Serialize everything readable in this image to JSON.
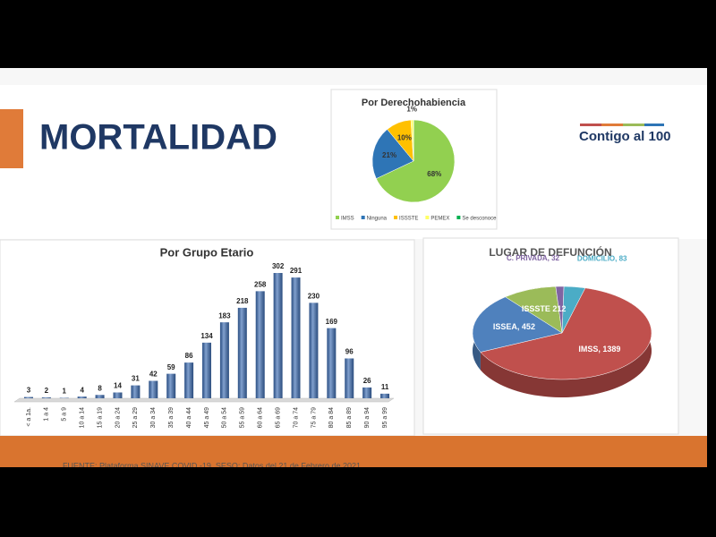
{
  "page": {
    "title": "MORTALIDAD",
    "logo": "Contigo al 100",
    "source": "FUENTE: Plataforma SINAVE COVID -19. SESO; Datos del 21 de Febrero de 2021"
  },
  "chart_data": [
    {
      "type": "pie",
      "title": "Por Derechohabiencia",
      "categories": [
        "IMSS",
        "Ninguna",
        "ISSSTE",
        "PEMEX",
        "Se desconoce"
      ],
      "values": [
        68,
        21,
        10,
        1,
        0
      ],
      "value_labels": [
        "68%",
        "21%",
        "10%",
        "1%",
        null
      ],
      "colors": [
        "#92d050",
        "#2e75b6",
        "#ffc000",
        "#ffff66",
        "#00b050"
      ],
      "legend": "bottom"
    },
    {
      "type": "bar",
      "title": "Por Grupo Etario",
      "categories": [
        "< a 1a.",
        "1 a 4",
        "5 a 9",
        "10 a 14",
        "15 a 19",
        "20 a 24",
        "25 a 29",
        "30 a 34",
        "35 a 39",
        "40 a 44",
        "45 a 49",
        "50 a 54",
        "55 a 59",
        "60 a 64",
        "65 a 69",
        "70 a 74",
        "75 a 79",
        "80 a 84",
        "85 a 89",
        "90 a 94",
        "95 a 99"
      ],
      "values": [
        3,
        2,
        1,
        4,
        8,
        14,
        31,
        42,
        59,
        86,
        134,
        183,
        218,
        258,
        302,
        291,
        230,
        169,
        96,
        26,
        11
      ],
      "color": "#3f6fb5"
    },
    {
      "type": "pie3d",
      "title": "LUGAR DE DEFUNCIÓN",
      "values": [
        1389,
        452,
        212,
        32,
        83
      ],
      "value_labels": [
        "IMSS, 1389",
        "ISSEA, 452",
        "ISSSTE 212",
        "C. PRIVADA, 32",
        "DOMICILIO, 83"
      ],
      "colors": [
        "#c0504d",
        "#4f81bd",
        "#9bbb59",
        "#8064a2",
        "#4bacc6"
      ],
      "label_colors": [
        "#ffffff",
        "#ffffff",
        "#ffffff",
        "#8064a2",
        "#4bacc6"
      ]
    }
  ]
}
